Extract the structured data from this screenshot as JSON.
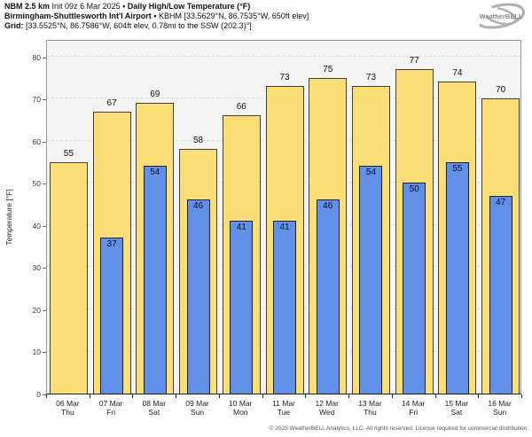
{
  "header": {
    "model": "NBM 2.5 km",
    "init": "Init 09z 6 Mar 2025",
    "separator": "•",
    "product": "Daily High/Low Temperature (°F)",
    "station": "Birmingham-Shuttlesworth Int'l Airport",
    "station_details": "KBHM [33.5629°N, 86.7535°W, 650ft elev]",
    "grid_label": "Grid:",
    "grid_details": "[33.5525°N, 86.7586°W, 604ft elev, 0.78mi to the SSW (202.3)°]"
  },
  "logo": {
    "text": "WeatherBELL"
  },
  "chart_data": {
    "type": "bar",
    "title": "NBM 2.5 km Init 09z 6 Mar 2025 • Daily High/Low Temperature (°F)",
    "subtitle": "Birmingham-Shuttlesworth Int'l Airport • KBHM",
    "ylabel": "Temperature [°F]",
    "ylim": [
      0,
      84.2
    ],
    "yticks": [
      0,
      10,
      20,
      30,
      40,
      50,
      60,
      70,
      80
    ],
    "grid": "horizontal-dashed",
    "legend_position": "none",
    "plot_bg": "#f4f4f4",
    "categories": [
      {
        "date": "06 Mar",
        "dow": "Thu"
      },
      {
        "date": "07 Mar",
        "dow": "Fri"
      },
      {
        "date": "08 Mar",
        "dow": "Sat"
      },
      {
        "date": "09 Mar",
        "dow": "Sun"
      },
      {
        "date": "10 Mar",
        "dow": "Mon"
      },
      {
        "date": "11 Mar",
        "dow": "Tue"
      },
      {
        "date": "12 Mar",
        "dow": "Wed"
      },
      {
        "date": "13 Mar",
        "dow": "Thu"
      },
      {
        "date": "14 Mar",
        "dow": "Fri"
      },
      {
        "date": "15 Mar",
        "dow": "Sat"
      },
      {
        "date": "16 Mar",
        "dow": "Sun"
      }
    ],
    "series": [
      {
        "name": "High",
        "color": "#FBDE76",
        "values": [
          55,
          67,
          69,
          58,
          66,
          73,
          75,
          73,
          77,
          74,
          70
        ]
      },
      {
        "name": "Low",
        "color": "#6190E8",
        "values": [
          null,
          37,
          54,
          46,
          41,
          41,
          46,
          54,
          50,
          55,
          47
        ]
      }
    ]
  },
  "footer": {
    "copyright": "© 2025 WeatherBELL Analytics, LLC. All rights reserved. License required for commercial distribution."
  }
}
